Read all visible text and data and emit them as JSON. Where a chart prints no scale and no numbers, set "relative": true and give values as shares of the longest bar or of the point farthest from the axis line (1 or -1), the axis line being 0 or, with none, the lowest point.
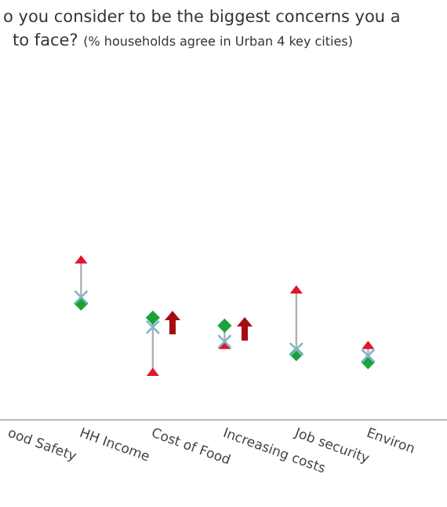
{
  "chart_data": {
    "type": "scatter",
    "title": "o you consider to be the biggest concerns you a to face?",
    "subtitle": "(% households agree in Urban 4 key cities)",
    "categories": [
      "ood Safety",
      "HH Income",
      "Cost of Food",
      "Increasing costs",
      "Job security",
      "Environ"
    ],
    "relative": true,
    "tick_labels": "x",
    "series": [
      {
        "color": "#e3142d",
        "marker": "triangle",
        "values": [
          null,
          1,
          0.29,
          0.46,
          0.81,
          0.46
        ]
      },
      {
        "color": "#1aa33a",
        "marker": "diamond",
        "values": [
          null,
          0.73,
          0.64,
          0.59,
          0.41,
          0.36
        ]
      },
      {
        "color": "#7fb5c5",
        "marker": "cross",
        "values": [
          null,
          0.77,
          0.58,
          0.49,
          0.44,
          0.4
        ]
      }
    ]
  }
}
